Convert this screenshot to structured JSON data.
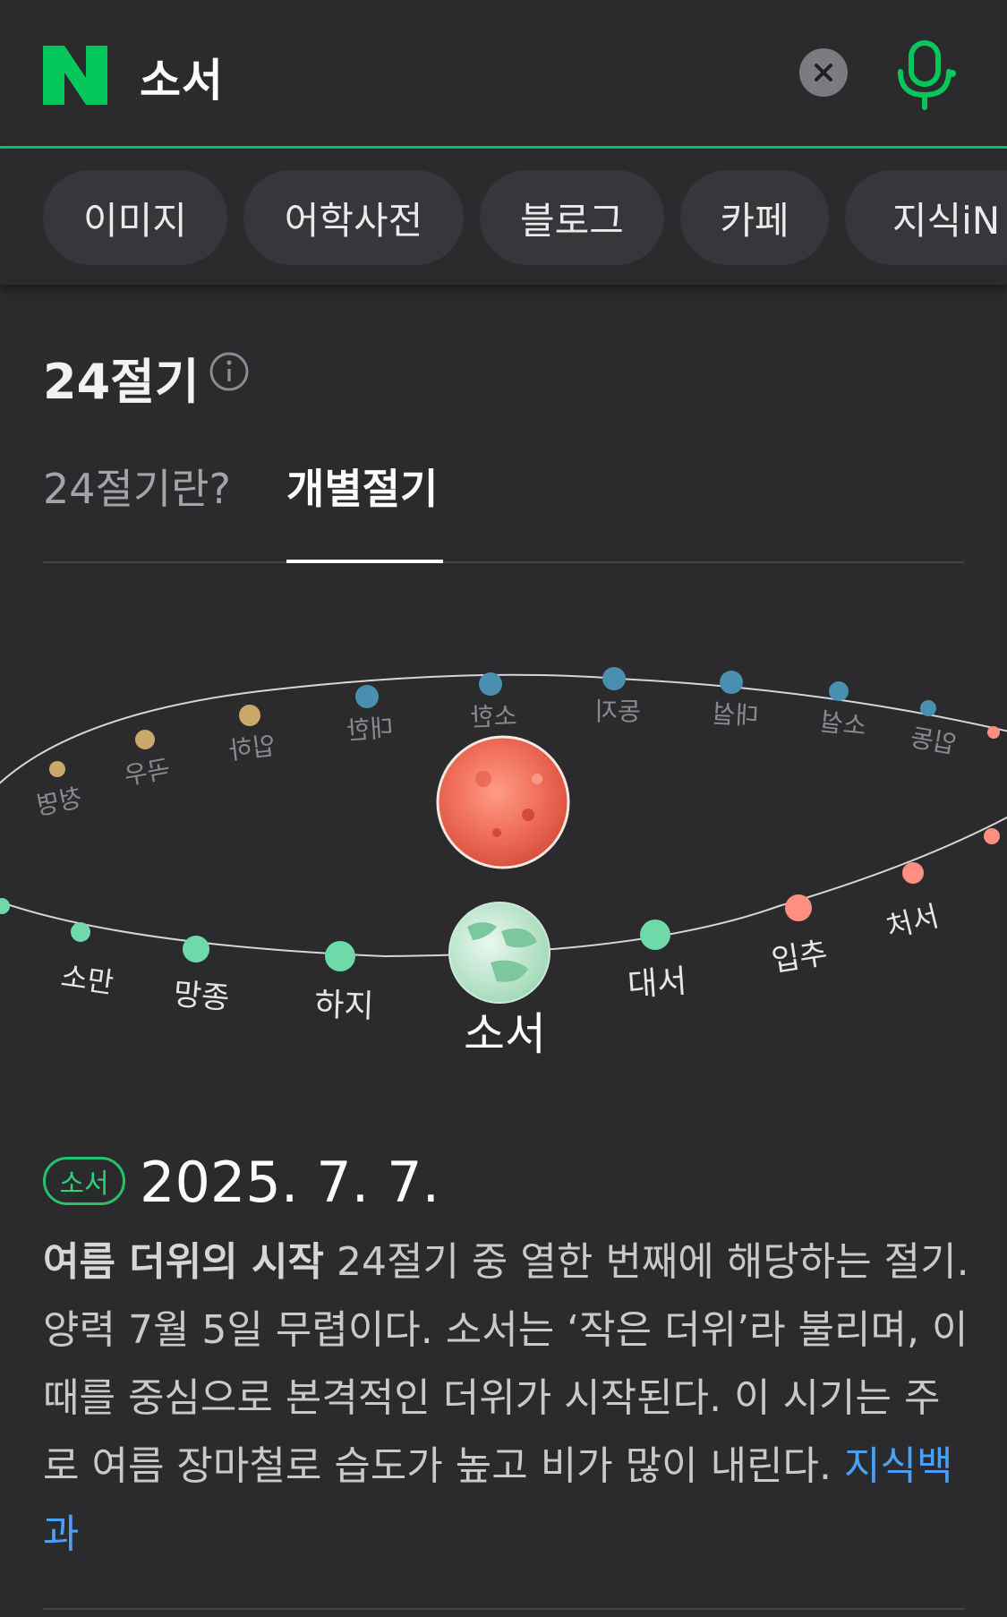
{
  "search": {
    "query": "소서"
  },
  "chips": [
    "이미지",
    "어학사전",
    "블로그",
    "카페",
    "지식iN"
  ],
  "section": {
    "title": "24절기"
  },
  "tabs": [
    {
      "label": "24절기란?",
      "active": false
    },
    {
      "label": "개별절기",
      "active": true
    }
  ],
  "orbit": {
    "front_terms": [
      "소만",
      "망종",
      "하지",
      "대서",
      "입추",
      "처서"
    ],
    "back_terms": [
      "청명",
      "곡우",
      "입하",
      "대한",
      "소한",
      "동지",
      "대설",
      "소설",
      "입동"
    ],
    "current_term": "소서"
  },
  "detail": {
    "badge": "소서",
    "date": "2025. 7. 7.",
    "headline": "여름 더위의 시작",
    "body": " 24절기 중 열한 번째에 해당하는 절기. 양력 7월 5일 무렵이다. 소서는 ‘작은 더위’라 불리며, 이때를 중심으로 본격적인 더위가 시작된다. 이 시기는 주로 여름 장마철로 습도가 높고 비가 많이 내린다.",
    "source_link": "지식백과"
  },
  "colors": {
    "accent": "#03c75a",
    "link": "#4aa0f5",
    "summer": "#6fd9a9",
    "spring": "#c9a86a",
    "winter": "#4a8fb0",
    "autumn": "#ff8f80"
  }
}
